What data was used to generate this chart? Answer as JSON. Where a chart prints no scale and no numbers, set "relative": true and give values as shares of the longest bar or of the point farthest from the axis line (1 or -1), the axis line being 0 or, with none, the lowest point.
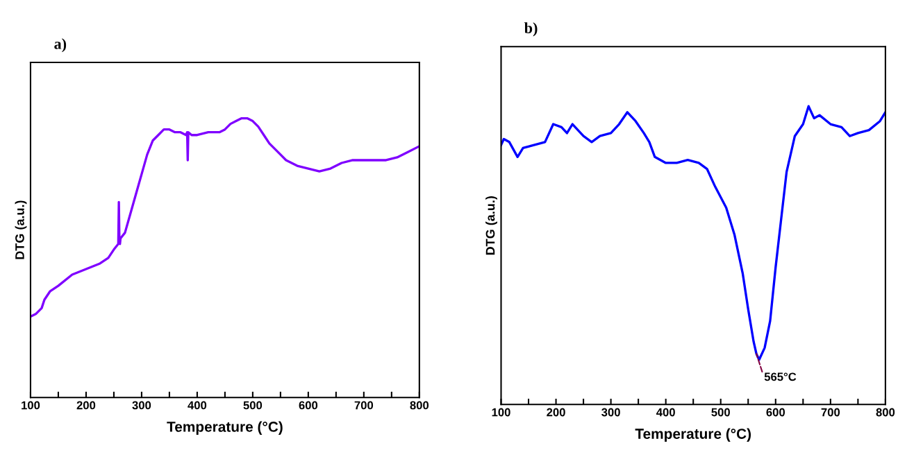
{
  "chart_data": [
    {
      "type": "line",
      "title": "a)",
      "xlabel": "Temperature (°C)",
      "ylabel": "DTG (a.u.)",
      "relative": true,
      "tick_labels": "x",
      "grid": false,
      "marker": "none",
      "line_style": "solid",
      "xlim": [
        100,
        800
      ],
      "xticks": [
        100,
        {
          "value": 150,
          "label": null
        },
        200,
        {
          "value": 250,
          "label": null
        },
        300,
        {
          "value": 350,
          "label": null
        },
        400,
        {
          "value": 450,
          "label": null
        },
        500,
        {
          "value": 550,
          "label": null
        },
        600,
        {
          "value": 650,
          "label": null
        },
        700,
        {
          "value": 750,
          "label": null
        },
        800
      ],
      "series": [
        {
          "color": "#7f00ff",
          "x": [
            100,
            110,
            120,
            125,
            135,
            150,
            175,
            200,
            225,
            240,
            250,
            258,
            259,
            260,
            261,
            262,
            270,
            280,
            290,
            300,
            310,
            320,
            330,
            340,
            350,
            360,
            370,
            380,
            382,
            383,
            384,
            390,
            400,
            420,
            440,
            450,
            460,
            470,
            480,
            490,
            500,
            510,
            520,
            530,
            540,
            550,
            560,
            570,
            580,
            600,
            620,
            640,
            660,
            680,
            700,
            720,
            740,
            760,
            780,
            800
          ],
          "values": [
            0.29,
            0.3,
            0.32,
            0.35,
            0.38,
            0.4,
            0.44,
            0.46,
            0.48,
            0.5,
            0.53,
            0.55,
            0.7,
            0.56,
            0.55,
            0.57,
            0.59,
            0.66,
            0.73,
            0.8,
            0.87,
            0.92,
            0.94,
            0.96,
            0.96,
            0.95,
            0.95,
            0.94,
            0.95,
            0.85,
            0.95,
            0.94,
            0.94,
            0.95,
            0.95,
            0.96,
            0.98,
            0.99,
            1.0,
            1.0,
            0.99,
            0.97,
            0.94,
            0.91,
            0.89,
            0.87,
            0.85,
            0.84,
            0.83,
            0.82,
            0.81,
            0.82,
            0.84,
            0.85,
            0.85,
            0.85,
            0.85,
            0.86,
            0.88,
            0.9
          ]
        }
      ]
    },
    {
      "type": "line",
      "title": "b)",
      "xlabel": "Temperature (°C)",
      "ylabel": "DTG (a.u.)",
      "relative": true,
      "tick_labels": "x",
      "grid": false,
      "marker": "none",
      "line_style": "solid",
      "xlim": [
        100,
        800
      ],
      "xticks": [
        100,
        {
          "value": 150,
          "label": null
        },
        200,
        {
          "value": 250,
          "label": null
        },
        300,
        {
          "value": 350,
          "label": null
        },
        400,
        {
          "value": 450,
          "label": null
        },
        500,
        {
          "value": 550,
          "label": null
        },
        600,
        {
          "value": 650,
          "label": null
        },
        700,
        {
          "value": 750,
          "label": null
        },
        800
      ],
      "annotations": [
        {
          "text": "565°C",
          "x": 565,
          "y": 0.17
        }
      ],
      "series": [
        {
          "color": "#0000ff",
          "x": [
            100,
            105,
            115,
            130,
            140,
            160,
            180,
            195,
            210,
            220,
            230,
            250,
            265,
            280,
            300,
            315,
            330,
            345,
            360,
            370,
            380,
            400,
            420,
            440,
            460,
            475,
            490,
            510,
            525,
            540,
            550,
            560,
            565,
            570,
            580,
            590,
            600,
            610,
            620,
            635,
            650,
            660,
            670,
            680,
            700,
            720,
            735,
            750,
            770,
            790,
            800
          ],
          "values": [
            0.87,
            0.89,
            0.88,
            0.83,
            0.86,
            0.87,
            0.88,
            0.94,
            0.93,
            0.91,
            0.94,
            0.9,
            0.88,
            0.9,
            0.91,
            0.94,
            0.98,
            0.95,
            0.91,
            0.88,
            0.83,
            0.81,
            0.81,
            0.82,
            0.81,
            0.79,
            0.73,
            0.66,
            0.57,
            0.44,
            0.32,
            0.21,
            0.17,
            0.15,
            0.19,
            0.28,
            0.46,
            0.62,
            0.78,
            0.9,
            0.94,
            1.0,
            0.96,
            0.97,
            0.94,
            0.93,
            0.9,
            0.91,
            0.92,
            0.95,
            0.98
          ]
        }
      ]
    }
  ]
}
